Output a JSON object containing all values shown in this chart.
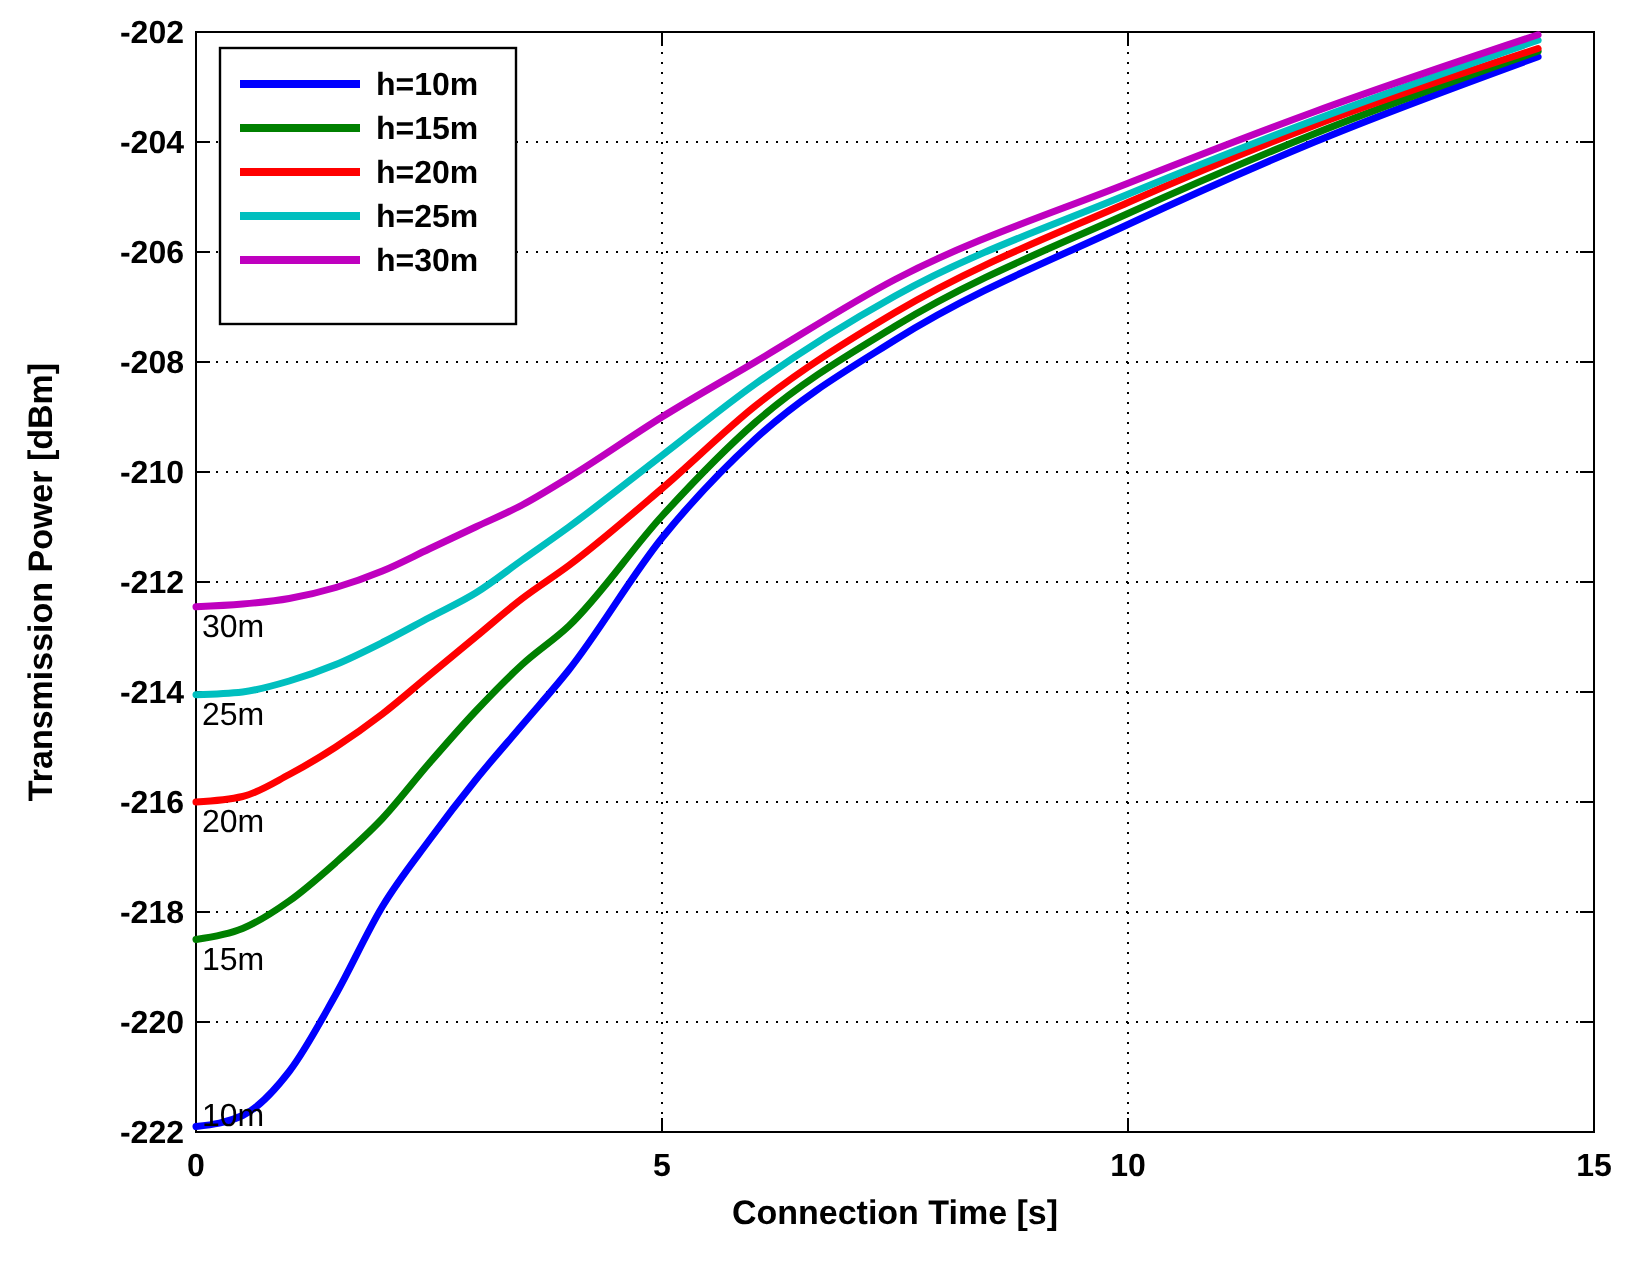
{
  "chart_data": {
    "type": "line",
    "xlabel": "Connection Time [s]",
    "ylabel": "Transmission Power [dBm]",
    "x": [
      0,
      0.5,
      1,
      1.5,
      2,
      2.5,
      3,
      3.5,
      4,
      5,
      6,
      7.5,
      10,
      12,
      14.4
    ],
    "series": [
      {
        "name": "h=10m",
        "color": "#0000ff",
        "values": [
          -221.9,
          -221.7,
          -220.9,
          -219.5,
          -217.9,
          -216.7,
          -215.6,
          -214.6,
          -213.6,
          -211.2,
          -209.4,
          -207.6,
          -205.5,
          -204.0,
          -202.45
        ]
      },
      {
        "name": "h=15m",
        "color": "#008000",
        "values": [
          -218.5,
          -218.3,
          -217.8,
          -217.1,
          -216.3,
          -215.3,
          -214.35,
          -213.5,
          -212.8,
          -210.8,
          -209.1,
          -207.35,
          -205.3,
          -203.85,
          -202.35
        ]
      },
      {
        "name": "h=20m",
        "color": "#ff0000",
        "values": [
          -216.0,
          -215.9,
          -215.5,
          -215.0,
          -214.4,
          -213.7,
          -213.0,
          -212.3,
          -211.7,
          -210.3,
          -208.8,
          -207.1,
          -205.1,
          -203.7,
          -202.3
        ]
      },
      {
        "name": "h=25m",
        "color": "#00bfbf",
        "values": [
          -214.05,
          -214.0,
          -213.8,
          -213.5,
          -213.1,
          -212.65,
          -212.2,
          -211.6,
          -211.0,
          -209.7,
          -208.4,
          -206.8,
          -204.95,
          -203.6,
          -202.15
        ]
      },
      {
        "name": "h=30m",
        "color": "#bf00bf",
        "values": [
          -212.45,
          -212.4,
          -212.3,
          -212.1,
          -211.8,
          -211.4,
          -211.0,
          -210.6,
          -210.1,
          -209.0,
          -208.0,
          -206.5,
          -204.75,
          -203.45,
          -202.05
        ]
      }
    ],
    "xlim": [
      0,
      15
    ],
    "xticks": [
      0,
      5,
      10,
      15
    ],
    "ylim": [
      -222,
      -202
    ],
    "yticks": [
      -222,
      -220,
      -218,
      -216,
      -214,
      -212,
      -210,
      -208,
      -206,
      -204,
      -202
    ],
    "annotations": [
      {
        "text": "10m",
        "y": -221.9
      },
      {
        "text": "15m",
        "y": -218.5
      },
      {
        "text": "20m",
        "y": -216.0
      },
      {
        "text": "25m",
        "y": -214.05
      },
      {
        "text": "30m",
        "y": -212.45
      }
    ],
    "grid": true,
    "legend": "top left",
    "marker": "none",
    "line_style": "solid"
  }
}
